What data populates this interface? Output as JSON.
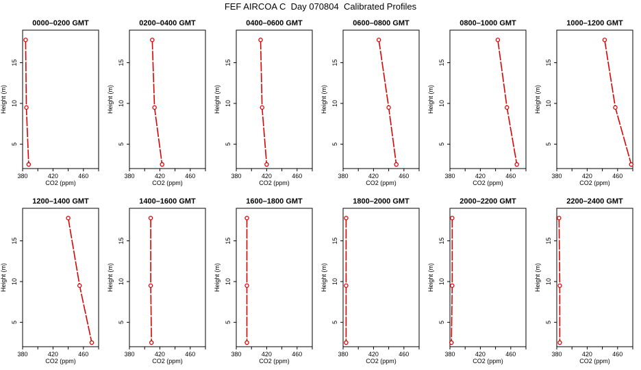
{
  "title": "FEF AIRCOA C  Day 070804  Calibrated Profiles",
  "style": {
    "line_color": "#dd0000",
    "marker_color": "#dd0000",
    "axis_color": "#000000"
  },
  "chart_data": [
    {
      "type": "line",
      "title": "0000–0200 GMT",
      "xlabel": "CO2 (ppm)",
      "ylabel": "Height (m)",
      "xlim": [
        380,
        480
      ],
      "ylim": [
        2,
        19
      ],
      "xticks": [
        380,
        420,
        460
      ],
      "yticks": [
        5,
        10,
        15
      ],
      "points": [
        {
          "x": 384,
          "y": 17.8
        },
        {
          "x": 385,
          "y": 9.5
        },
        {
          "x": 388,
          "y": 2.5
        }
      ]
    },
    {
      "type": "line",
      "title": "0200–0400 GMT",
      "xlabel": "CO2 (ppm)",
      "ylabel": "Height (m)",
      "xlim": [
        380,
        480
      ],
      "ylim": [
        2,
        19
      ],
      "xticks": [
        380,
        420,
        460
      ],
      "yticks": [
        5,
        10,
        15
      ],
      "points": [
        {
          "x": 410,
          "y": 17.8
        },
        {
          "x": 413,
          "y": 9.5
        },
        {
          "x": 423,
          "y": 2.5
        }
      ]
    },
    {
      "type": "line",
      "title": "0400–0600 GMT",
      "xlabel": "CO2 (ppm)",
      "ylabel": "Height (m)",
      "xlim": [
        380,
        480
      ],
      "ylim": [
        2,
        19
      ],
      "xticks": [
        380,
        420,
        460
      ],
      "yticks": [
        5,
        10,
        15
      ],
      "points": [
        {
          "x": 412,
          "y": 17.8
        },
        {
          "x": 414,
          "y": 9.5
        },
        {
          "x": 420,
          "y": 2.5
        }
      ]
    },
    {
      "type": "line",
      "title": "0600–0800 GMT",
      "xlabel": "CO2 (ppm)",
      "ylabel": "Height (m)",
      "xlim": [
        380,
        480
      ],
      "ylim": [
        2,
        19
      ],
      "xticks": [
        380,
        420,
        460
      ],
      "yticks": [
        5,
        10,
        15
      ],
      "points": [
        {
          "x": 427,
          "y": 17.8
        },
        {
          "x": 440,
          "y": 9.5
        },
        {
          "x": 450,
          "y": 2.5
        }
      ]
    },
    {
      "type": "line",
      "title": "0800–1000 GMT",
      "xlabel": "CO2 (ppm)",
      "ylabel": "Height (m)",
      "xlim": [
        380,
        480
      ],
      "ylim": [
        2,
        19
      ],
      "xticks": [
        380,
        420,
        460
      ],
      "yticks": [
        5,
        10,
        15
      ],
      "points": [
        {
          "x": 443,
          "y": 17.8
        },
        {
          "x": 455,
          "y": 9.5
        },
        {
          "x": 468,
          "y": 2.5
        }
      ]
    },
    {
      "type": "line",
      "title": "1000–1200 GMT",
      "xlabel": "CO2 (ppm)",
      "ylabel": "Height (m)",
      "xlim": [
        380,
        480
      ],
      "ylim": [
        2,
        19
      ],
      "xticks": [
        380,
        420,
        460
      ],
      "yticks": [
        5,
        10,
        15
      ],
      "points": [
        {
          "x": 443,
          "y": 17.8
        },
        {
          "x": 457,
          "y": 9.5
        },
        {
          "x": 478,
          "y": 2.5
        }
      ]
    },
    {
      "type": "line",
      "title": "1200–1400 GMT",
      "xlabel": "CO2 (ppm)",
      "ylabel": "Height (m)",
      "xlim": [
        380,
        480
      ],
      "ylim": [
        2,
        19
      ],
      "xticks": [
        380,
        420,
        460
      ],
      "yticks": [
        5,
        10,
        15
      ],
      "points": [
        {
          "x": 440,
          "y": 17.8
        },
        {
          "x": 455,
          "y": 9.5
        },
        {
          "x": 471,
          "y": 2.5
        }
      ]
    },
    {
      "type": "line",
      "title": "1400–1600 GMT",
      "xlabel": "CO2 (ppm)",
      "ylabel": "Height (m)",
      "xlim": [
        380,
        480
      ],
      "ylim": [
        2,
        19
      ],
      "xticks": [
        380,
        420,
        460
      ],
      "yticks": [
        5,
        10,
        15
      ],
      "points": [
        {
          "x": 408,
          "y": 17.8
        },
        {
          "x": 408,
          "y": 9.5
        },
        {
          "x": 409,
          "y": 2.5
        }
      ]
    },
    {
      "type": "line",
      "title": "1600–1800 GMT",
      "xlabel": "CO2 (ppm)",
      "ylabel": "Height (m)",
      "xlim": [
        380,
        480
      ],
      "ylim": [
        2,
        19
      ],
      "xticks": [
        380,
        420,
        460
      ],
      "yticks": [
        5,
        10,
        15
      ],
      "points": [
        {
          "x": 394,
          "y": 17.8
        },
        {
          "x": 394,
          "y": 9.5
        },
        {
          "x": 394,
          "y": 2.5
        }
      ]
    },
    {
      "type": "line",
      "title": "1800–2000 GMT",
      "xlabel": "CO2 (ppm)",
      "ylabel": "Height (m)",
      "xlim": [
        380,
        480
      ],
      "ylim": [
        2,
        19
      ],
      "xticks": [
        380,
        420,
        460
      ],
      "yticks": [
        5,
        10,
        15
      ],
      "points": [
        {
          "x": 384,
          "y": 17.8
        },
        {
          "x": 384,
          "y": 9.5
        },
        {
          "x": 384,
          "y": 2.5
        }
      ]
    },
    {
      "type": "line",
      "title": "2000–2200 GMT",
      "xlabel": "CO2 (ppm)",
      "ylabel": "Height (m)",
      "xlim": [
        380,
        480
      ],
      "ylim": [
        2,
        19
      ],
      "xticks": [
        380,
        420,
        460
      ],
      "yticks": [
        5,
        10,
        15
      ],
      "points": [
        {
          "x": 383,
          "y": 17.8
        },
        {
          "x": 383,
          "y": 9.5
        },
        {
          "x": 382,
          "y": 2.5
        }
      ]
    },
    {
      "type": "line",
      "title": "2200–2400 GMT",
      "xlabel": "CO2 (ppm)",
      "ylabel": "Height (m)",
      "xlim": [
        380,
        480
      ],
      "ylim": [
        2,
        19
      ],
      "xticks": [
        380,
        420,
        460
      ],
      "yticks": [
        5,
        10,
        15
      ],
      "points": [
        {
          "x": 383,
          "y": 17.8
        },
        {
          "x": 384,
          "y": 9.5
        },
        {
          "x": 384,
          "y": 2.5
        }
      ]
    }
  ]
}
